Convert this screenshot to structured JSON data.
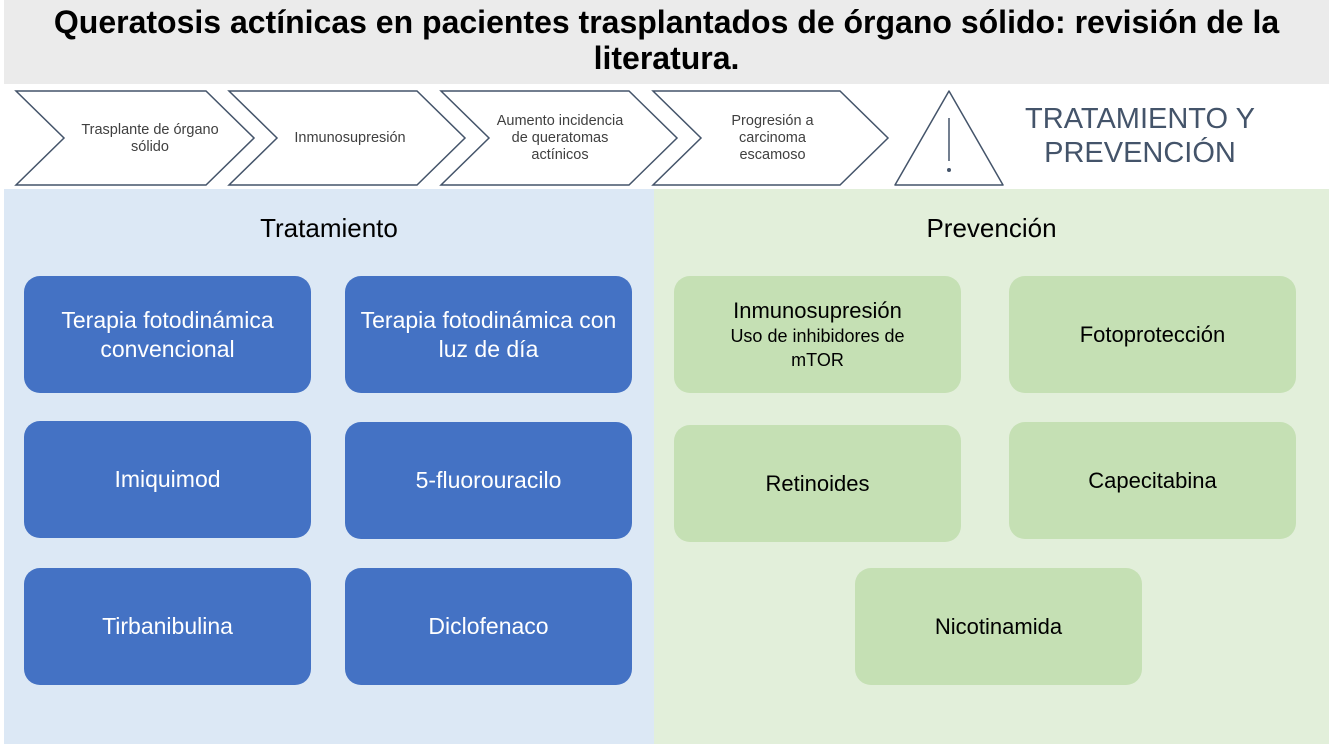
{
  "title": "Queratosis actínicas en pacientes trasplantados de órgano sólido: revisión de la literatura.",
  "flow": {
    "steps": [
      "Trasplante de órgano sólido",
      "Inmunosupresión",
      "Aumento incidencia de queratomas actínicos",
      "Progresión a carcinoma escamoso"
    ],
    "icon": "warning-triangle-icon",
    "heading": "TRATAMIENTO Y PREVENCIÓN"
  },
  "treatment": {
    "heading": "Tratamiento",
    "items": [
      "Terapia fotodinámica convencional",
      "Terapia fotodinámica con luz de día",
      "Imiquimod",
      "5-fluorouracilo",
      "Tirbanibulina",
      "Diclofenaco"
    ]
  },
  "prevention": {
    "heading": "Prevención",
    "items": [
      {
        "label": "Inmunosupresión",
        "sub": "Uso de inhibidores de mTOR"
      },
      {
        "label": "Fotoprotección"
      },
      {
        "label": "Retinoides"
      },
      {
        "label": "Capecitabina"
      },
      {
        "label": "Nicotinamida"
      }
    ]
  },
  "colors": {
    "title_bg": "#ebebeb",
    "treatment_bg": "#dce8f5",
    "prevention_bg": "#e2efda",
    "treatment_box": "#4472c4",
    "prevention_box": "#c5e0b4",
    "heading": "#44546a"
  }
}
